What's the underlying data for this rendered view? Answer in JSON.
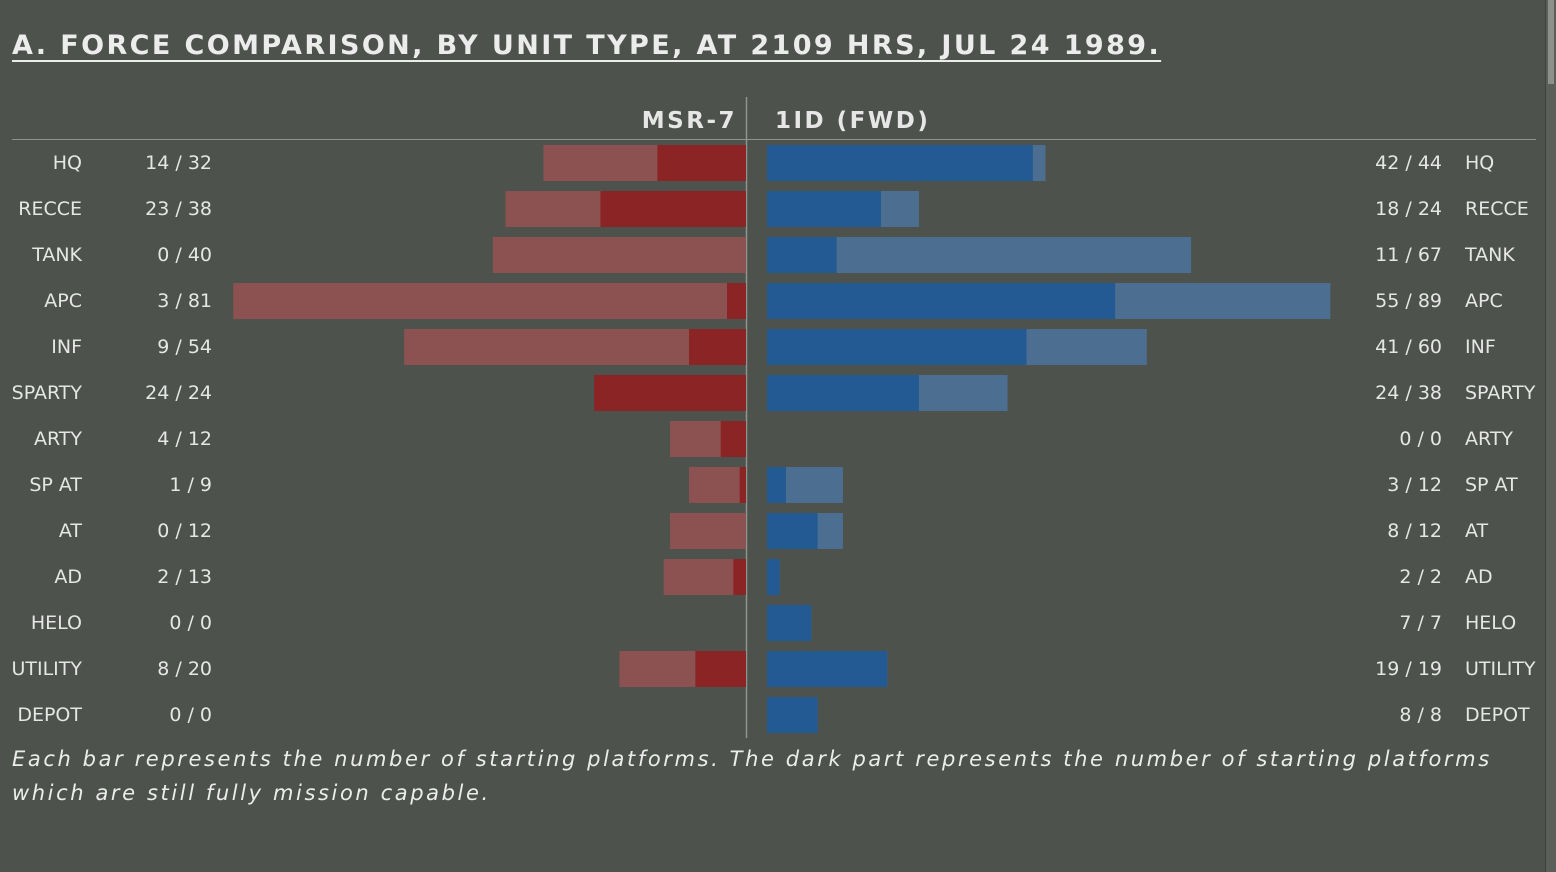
{
  "title": "A. FORCE COMPARISON, BY UNIT TYPE, AT 2109 HRS, JUL 24 1989.",
  "footnote": "Each bar represents the number of starting platforms. The dark part represents the number of starting platforms which are still fully mission capable.",
  "colors": {
    "background": "#4d524c",
    "left_dark": "#8b2525",
    "left_light": "#8c5251",
    "right_dark": "#245a93",
    "right_light": "#4c6e91",
    "divider": "#8f948e",
    "text": "#e6e6e6"
  },
  "chart_data": {
    "type": "bar",
    "orientation": "horizontal-butterfly",
    "xlim": [
      0,
      100
    ],
    "categories": [
      "HQ",
      "RECCE",
      "TANK",
      "APC",
      "INF",
      "SPARTY",
      "ARTY",
      "SP AT",
      "AT",
      "AD",
      "HELO",
      "UTILITY",
      "DEPOT"
    ],
    "left": {
      "name": "MSR-7",
      "labels": [
        "14 / 32",
        "23 / 38",
        "0 / 40",
        "3 / 81",
        "9 / 54",
        "24 / 24",
        "4 / 12",
        "1 / 9",
        "0 / 12",
        "2 / 13",
        "0 / 0",
        "8 / 20",
        "0 / 0"
      ],
      "capable": [
        14,
        23,
        0,
        3,
        9,
        24,
        4,
        1,
        0,
        2,
        0,
        8,
        0
      ],
      "total": [
        32,
        38,
        40,
        81,
        54,
        24,
        12,
        9,
        12,
        13,
        0,
        20,
        0
      ]
    },
    "right": {
      "name": "1ID (FWD)",
      "labels": [
        "42 / 44",
        "18 / 24",
        "11 / 67",
        "55 / 89",
        "41 / 60",
        "24 / 38",
        "0 / 0",
        "3 / 12",
        "8 / 12",
        "2 / 2",
        "7 / 7",
        "19 / 19",
        "8 / 8"
      ],
      "capable": [
        42,
        18,
        11,
        55,
        41,
        24,
        0,
        3,
        8,
        2,
        7,
        19,
        8
      ],
      "total": [
        44,
        24,
        67,
        89,
        60,
        38,
        0,
        12,
        12,
        2,
        7,
        19,
        8
      ]
    }
  }
}
